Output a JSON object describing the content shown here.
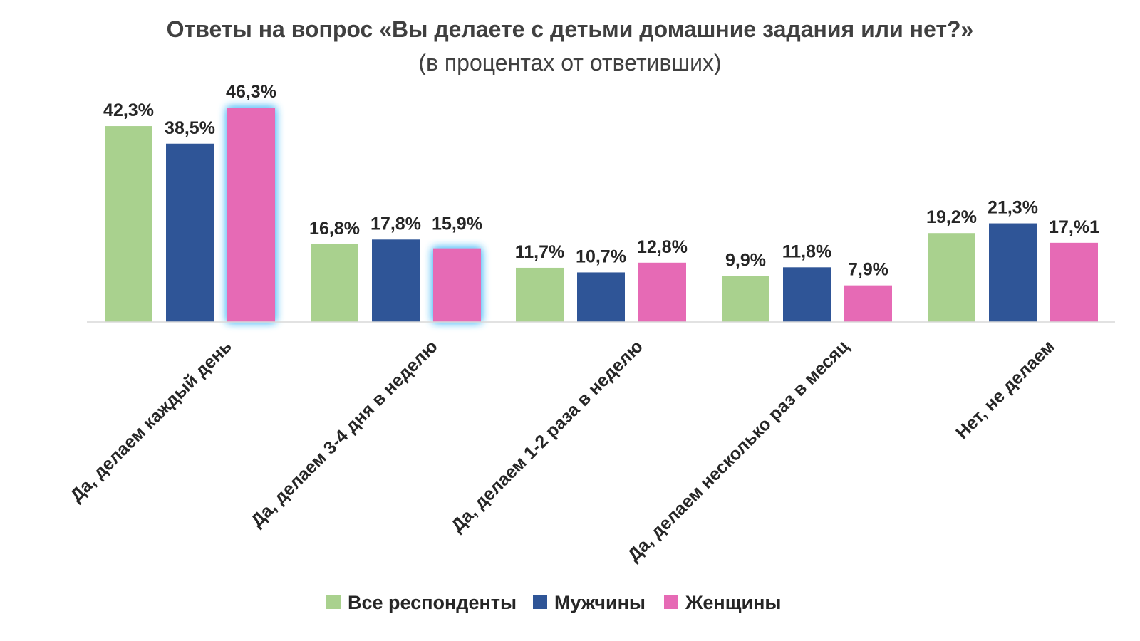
{
  "chart_data": {
    "type": "bar",
    "title": "Ответы на вопрос «Вы делаете с детьми домашние задания или нет?»",
    "subtitle": "(в процентах от ответивших)",
    "categories": [
      "Да, делаем каждый день",
      "Да, делаем 3-4 дня в неделю",
      "Да, делаем 1-2 раза в неделю",
      "Да, делаем несколько раз в месяц",
      "Нет, не делаем"
    ],
    "series": [
      {
        "name": "Все респонденты",
        "color": "#a9d18e",
        "values": [
          42.3,
          16.8,
          11.7,
          9.9,
          19.2
        ],
        "labels": [
          "42,3%",
          "16,8%",
          "11,7%",
          "9,9%",
          "19,2%"
        ]
      },
      {
        "name": "Мужчины",
        "color": "#2f5597",
        "values": [
          38.5,
          17.8,
          10.7,
          11.8,
          21.3
        ],
        "labels": [
          "38,5%",
          "17,8%",
          "10,7%",
          "11,8%",
          "21,3%"
        ]
      },
      {
        "name": "Женщины",
        "color": "#e66ab5",
        "values": [
          46.3,
          15.9,
          12.8,
          7.9,
          17.1
        ],
        "labels": [
          "46,3%",
          "15,9%",
          "12,8%",
          "7,9%",
          "17,%1"
        ]
      }
    ],
    "ylim": [
      0,
      50
    ],
    "grid": false,
    "legend": "bottom-center",
    "highlight_color": "#5bc0f8"
  }
}
